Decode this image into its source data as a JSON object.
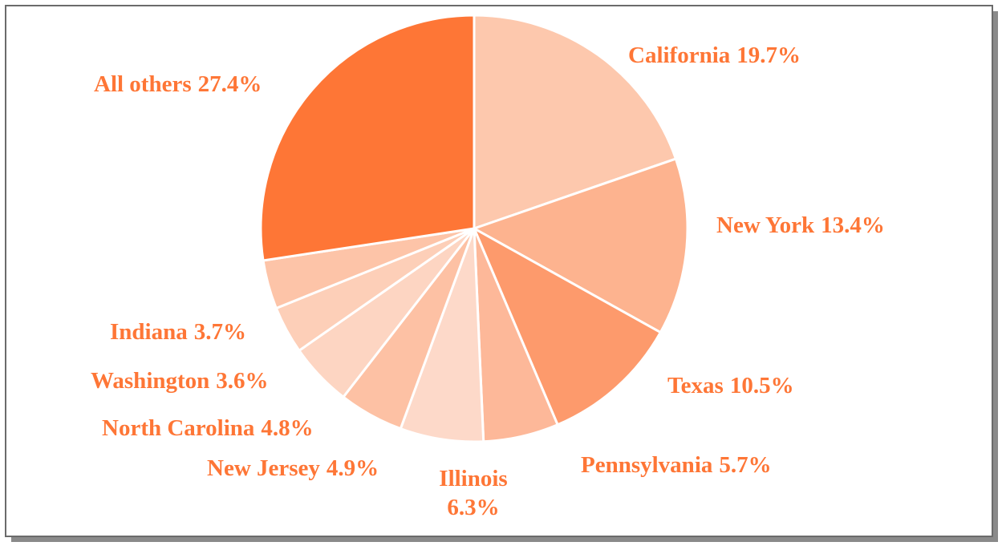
{
  "chart_data": {
    "type": "pie",
    "categories": [
      "California",
      "New York",
      "Texas",
      "Pennsylvania",
      "Illinois",
      "New Jersey",
      "North Carolina",
      "Washington",
      "Indiana",
      "All others"
    ],
    "values": [
      19.7,
      13.4,
      10.5,
      5.7,
      6.3,
      4.9,
      4.8,
      3.6,
      3.7,
      27.4
    ],
    "value_labels": [
      "19.7%",
      "13.4%",
      "10.5%",
      "5.7%",
      "6.3%",
      "4.9%",
      "4.8%",
      "3.6%",
      "3.7%",
      "27.4%"
    ],
    "colors": [
      "#fdc8ad",
      "#fdb38f",
      "#fd9a6c",
      "#fdb899",
      "#fdd9c9",
      "#fdc1a4",
      "#fdd5c2",
      "#fdcfb8",
      "#fdc4a8",
      "#fe7636"
    ]
  }
}
